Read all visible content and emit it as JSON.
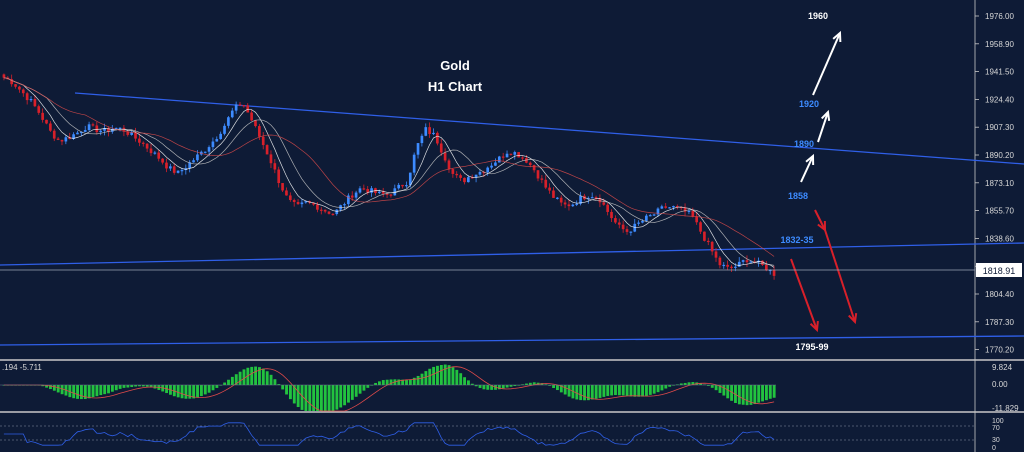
{
  "title": {
    "line1": "Gold",
    "line2": "H1 Chart"
  },
  "colors": {
    "background": "#0e1b36",
    "bull_candle": "#3d8bff",
    "bear_candle": "#d8202a",
    "trendline": "#2f5fe8",
    "ma_fast": "#ffffff",
    "ma_slow": "#d84a4a",
    "macd_hist": "#22c33f",
    "macd_signal": "#e04a4a",
    "rsi_line": "#2f5fe8",
    "label_blue": "#3d8bff",
    "label_white": "#ffffff",
    "arrow_up": "#ffffff",
    "arrow_down": "#d8202a",
    "panel_border": "#c8c8c8",
    "axis_text": "#d8d8d8"
  },
  "price_axis": {
    "ticks": [
      "1976.00",
      "1958.90",
      "1941.50",
      "1924.40",
      "1907.30",
      "1890.20",
      "1873.10",
      "1855.70",
      "1838.60",
      "1821.50",
      "1804.40",
      "1787.30",
      "1770.20"
    ],
    "current_price": "1818.91"
  },
  "macd_panel": {
    "values_label": ".194 -5.711",
    "ticks": [
      "9.824",
      "0.00",
      "-11.829"
    ]
  },
  "rsi_panel": {
    "ticks": [
      "100",
      "70",
      "30",
      "0"
    ]
  },
  "annotations": {
    "target_1960": "1960",
    "target_1920": "1920",
    "target_1890": "1890",
    "target_1858": "1858",
    "level_1832": "1832-35",
    "level_1795": "1795-99"
  },
  "chart_data": {
    "type": "candlestick",
    "instrument": "Gold",
    "timeframe": "H1",
    "ylim": [
      1763,
      1984
    ],
    "close_path": [
      1938,
      1935,
      1929,
      1923,
      1915,
      1905,
      1899,
      1901,
      1904,
      1908,
      1906,
      1905,
      1907,
      1906,
      1902,
      1898,
      1893,
      1888,
      1882,
      1879,
      1884,
      1889,
      1894,
      1900,
      1908,
      1918,
      1923,
      1912,
      1900,
      1888,
      1874,
      1862,
      1858,
      1861,
      1859,
      1856,
      1854,
      1860,
      1866,
      1870,
      1868,
      1866,
      1866,
      1870,
      1874,
      1895,
      1906,
      1902,
      1890,
      1878,
      1874,
      1878,
      1880,
      1884,
      1888,
      1893,
      1891,
      1887,
      1880,
      1871,
      1864,
      1859,
      1860,
      1864,
      1866,
      1863,
      1854,
      1846,
      1843,
      1847,
      1851,
      1854,
      1858,
      1858,
      1856,
      1853,
      1843,
      1833,
      1823,
      1820,
      1822,
      1826,
      1824,
      1821,
      1817
    ]
  }
}
